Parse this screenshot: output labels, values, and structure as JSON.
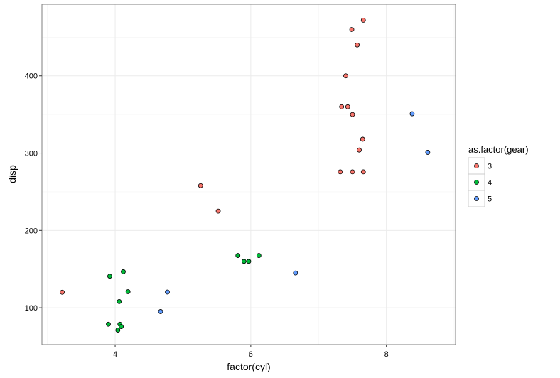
{
  "chart_data": {
    "type": "scatter",
    "title": "",
    "xlabel": "factor(cyl)",
    "ylabel": "disp",
    "xlim": [
      2.92,
      9.02
    ],
    "ylim": [
      52.3,
      492.6
    ],
    "xticks": [
      4,
      6,
      8
    ],
    "yticks": [
      100,
      200,
      300,
      400
    ],
    "grid": true,
    "legend": {
      "title": "as.factor(gear)",
      "position": "right"
    },
    "series": [
      {
        "name": "3",
        "color": "#f8766d",
        "points": [
          {
            "x": 3.22,
            "y": 120.1
          },
          {
            "x": 5.26,
            "y": 258.0
          },
          {
            "x": 5.52,
            "y": 225.0
          },
          {
            "x": 7.66,
            "y": 472.0
          },
          {
            "x": 7.49,
            "y": 460.0
          },
          {
            "x": 7.57,
            "y": 440.0
          },
          {
            "x": 7.4,
            "y": 400.0
          },
          {
            "x": 7.34,
            "y": 360.0
          },
          {
            "x": 7.43,
            "y": 360.0
          },
          {
            "x": 7.5,
            "y": 350.0
          },
          {
            "x": 7.65,
            "y": 318.0
          },
          {
            "x": 7.6,
            "y": 304.0
          },
          {
            "x": 7.32,
            "y": 275.8
          },
          {
            "x": 7.5,
            "y": 275.8
          },
          {
            "x": 7.66,
            "y": 275.8
          }
        ]
      },
      {
        "name": "4",
        "color": "#00ba38",
        "points": [
          {
            "x": 3.92,
            "y": 140.8
          },
          {
            "x": 4.12,
            "y": 146.7
          },
          {
            "x": 4.19,
            "y": 120.8
          },
          {
            "x": 4.06,
            "y": 108.0
          },
          {
            "x": 3.9,
            "y": 78.7
          },
          {
            "x": 4.07,
            "y": 78.7
          },
          {
            "x": 4.09,
            "y": 75.7
          },
          {
            "x": 4.04,
            "y": 71.1
          },
          {
            "x": 5.81,
            "y": 167.6
          },
          {
            "x": 5.9,
            "y": 160.0
          },
          {
            "x": 5.97,
            "y": 160.0
          },
          {
            "x": 6.12,
            "y": 167.6
          }
        ]
      },
      {
        "name": "5",
        "color": "#619cff",
        "points": [
          {
            "x": 4.77,
            "y": 120.3
          },
          {
            "x": 4.67,
            "y": 95.1
          },
          {
            "x": 6.66,
            "y": 145.0
          },
          {
            "x": 8.38,
            "y": 351.0
          },
          {
            "x": 8.61,
            "y": 301.0
          }
        ]
      }
    ]
  }
}
